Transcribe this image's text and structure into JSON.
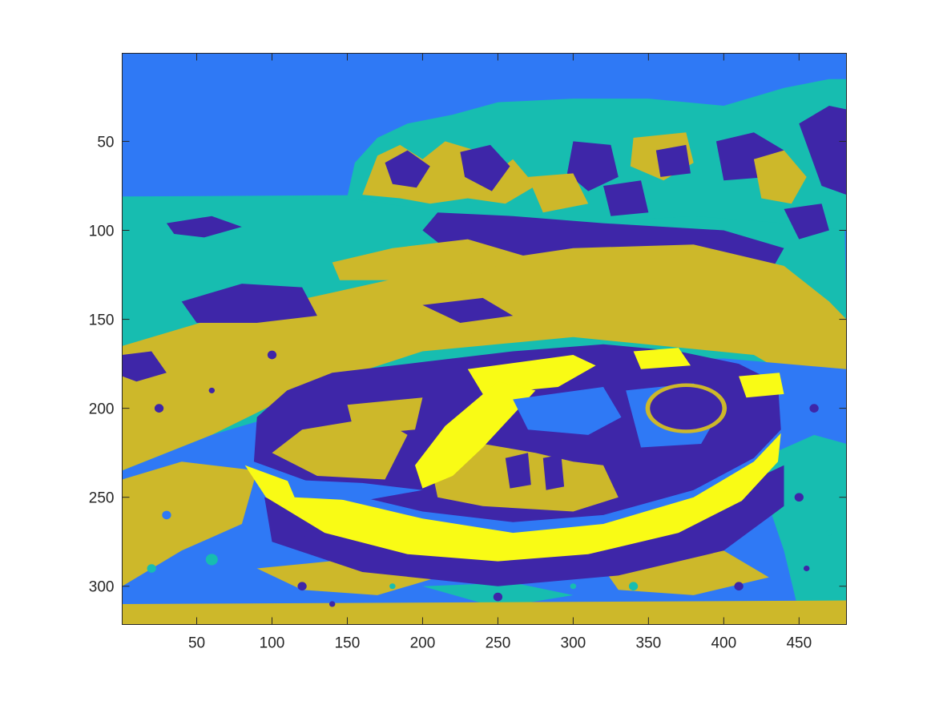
{
  "chart_data": {
    "type": "heatmap",
    "title": "",
    "xlabel": "",
    "ylabel": "",
    "xlim": [
      0.5,
      481.5
    ],
    "ylim": [
      0.5,
      321.5
    ],
    "y_reversed": true,
    "x_ticks": [
      50,
      100,
      150,
      200,
      250,
      300,
      350,
      400,
      450
    ],
    "y_ticks": [
      50,
      100,
      150,
      200,
      250,
      300
    ],
    "colormap": [
      "#3e26a8",
      "#2f79f5",
      "#17bdb0",
      "#cdb82a",
      "#f9fb15"
    ],
    "grid": false,
    "legend": "none"
  }
}
